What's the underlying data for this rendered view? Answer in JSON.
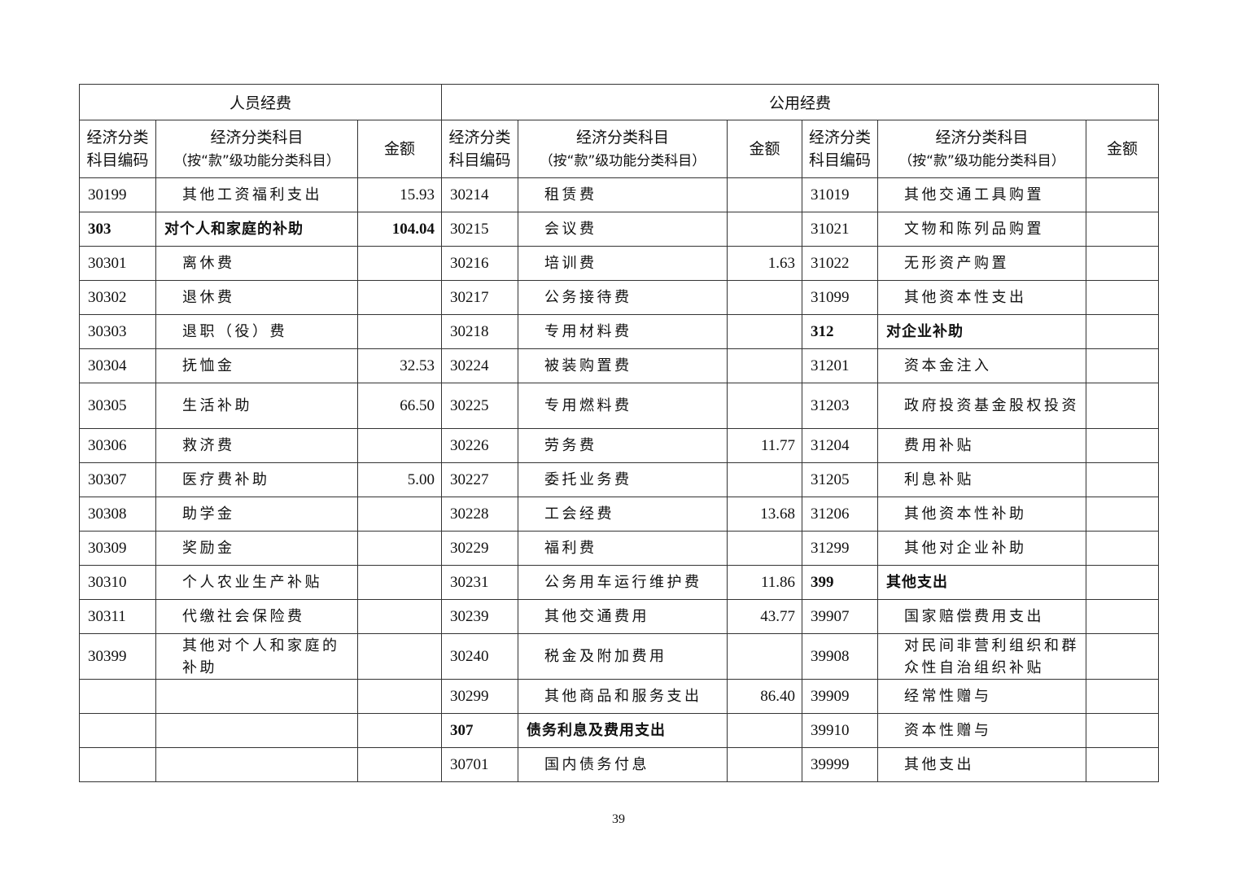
{
  "groups": {
    "personnel": "人员经费",
    "public": "公用经费"
  },
  "headers": {
    "code": "经济分类科目编码",
    "code_line1": "经济分类",
    "code_line2": "科目编码",
    "name_line1": "经济分类科目",
    "name_line2": "（按“款”级功能分类科目）",
    "amount": "金额"
  },
  "rows": [
    [
      [
        "30199",
        "其他工资福利支出",
        "15.93"
      ],
      [
        "30214",
        "租赁费",
        ""
      ],
      [
        "31019",
        "其他交通工具购置",
        ""
      ]
    ],
    [
      [
        "303",
        "对个人和家庭的补助",
        "104.04"
      ],
      [
        "30215",
        "会议费",
        ""
      ],
      [
        "31021",
        "文物和陈列品购置",
        ""
      ]
    ],
    [
      [
        "30301",
        "离休费",
        ""
      ],
      [
        "30216",
        "培训费",
        "1.63"
      ],
      [
        "31022",
        "无形资产购置",
        ""
      ]
    ],
    [
      [
        "30302",
        "退休费",
        ""
      ],
      [
        "30217",
        "公务接待费",
        ""
      ],
      [
        "31099",
        "其他资本性支出",
        ""
      ]
    ],
    [
      [
        "30303",
        "退职（役）费",
        ""
      ],
      [
        "30218",
        "专用材料费",
        ""
      ],
      [
        "312",
        "对企业补助",
        ""
      ]
    ],
    [
      [
        "30304",
        "抚恤金",
        "32.53"
      ],
      [
        "30224",
        "被装购置费",
        ""
      ],
      [
        "31201",
        "资本金注入",
        ""
      ]
    ],
    [
      [
        "30305",
        "生活补助",
        "66.50"
      ],
      [
        "30225",
        "专用燃料费",
        ""
      ],
      [
        "31203",
        "政府投资基金股权投资",
        ""
      ]
    ],
    [
      [
        "30306",
        "救济费",
        ""
      ],
      [
        "30226",
        "劳务费",
        "11.77"
      ],
      [
        "31204",
        "费用补贴",
        ""
      ]
    ],
    [
      [
        "30307",
        "医疗费补助",
        "5.00"
      ],
      [
        "30227",
        "委托业务费",
        ""
      ],
      [
        "31205",
        "利息补贴",
        ""
      ]
    ],
    [
      [
        "30308",
        "助学金",
        ""
      ],
      [
        "30228",
        "工会经费",
        "13.68"
      ],
      [
        "31206",
        "其他资本性补助",
        ""
      ]
    ],
    [
      [
        "30309",
        "奖励金",
        ""
      ],
      [
        "30229",
        "福利费",
        ""
      ],
      [
        "31299",
        "其他对企业补助",
        ""
      ]
    ],
    [
      [
        "30310",
        "个人农业生产补贴",
        ""
      ],
      [
        "30231",
        "公务用车运行维护费",
        "11.86"
      ],
      [
        "399",
        "其他支出",
        ""
      ]
    ],
    [
      [
        "30311",
        "代缴社会保险费",
        ""
      ],
      [
        "30239",
        "其他交通费用",
        "43.77"
      ],
      [
        "39907",
        "国家赔偿费用支出",
        ""
      ]
    ],
    [
      [
        "30399",
        "其他对个人和家庭的补助",
        ""
      ],
      [
        "30240",
        "税金及附加费用",
        ""
      ],
      [
        "39908",
        "对民间非营利组织和群众性自治组织补贴",
        ""
      ]
    ],
    [
      [
        "",
        "",
        ""
      ],
      [
        "30299",
        "其他商品和服务支出",
        "86.40"
      ],
      [
        "39909",
        "经常性赠与",
        ""
      ]
    ],
    [
      [
        "",
        "",
        ""
      ],
      [
        "307",
        "债务利息及费用支出",
        ""
      ],
      [
        "39910",
        "资本性赠与",
        ""
      ]
    ],
    [
      [
        "",
        "",
        ""
      ],
      [
        "30701",
        "国内债务付息",
        ""
      ],
      [
        "39999",
        "其他支出",
        ""
      ]
    ]
  ],
  "page_number": "39"
}
